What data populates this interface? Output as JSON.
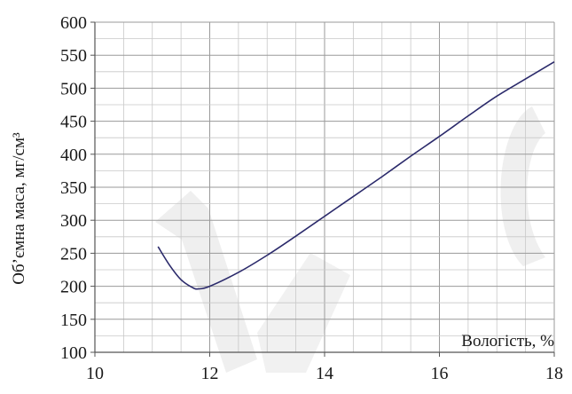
{
  "chart_data": {
    "type": "line",
    "title": "",
    "xlabel": "Вологість, %",
    "ylabel": "Об’ємна маса, мг/см³",
    "xlim": [
      10,
      18
    ],
    "ylim": [
      100,
      600
    ],
    "x_ticks": [
      10,
      12,
      14,
      16,
      18
    ],
    "y_ticks": [
      100,
      150,
      200,
      250,
      300,
      350,
      400,
      450,
      500,
      550,
      600
    ],
    "grid": true,
    "legend": "none",
    "series": [
      {
        "color": "#2b2a6b",
        "x": [
          11.1,
          11.3,
          11.5,
          11.7,
          11.8,
          12.0,
          12.5,
          13.0,
          13.5,
          14.0,
          14.5,
          15.0,
          15.5,
          16.0,
          16.5,
          17.0,
          17.5,
          18.0
        ],
        "y": [
          260,
          232,
          210,
          198,
          196,
          200,
          221,
          247,
          276,
          306,
          336,
          366,
          397,
          427,
          458,
          488,
          514,
          540
        ]
      }
    ]
  },
  "watermark": {
    "color": "#ececec",
    "text": ""
  }
}
